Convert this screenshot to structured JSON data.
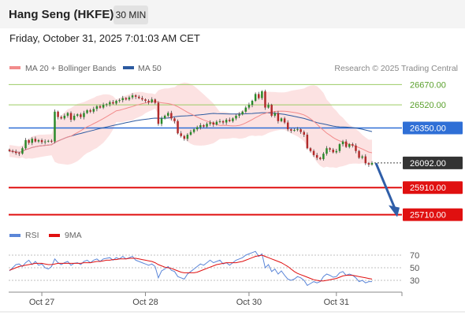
{
  "header": {
    "title": "Hang Seng (HKFE)",
    "interval": "30 MIN"
  },
  "timestamp": "Friday, October 31, 2025 7:01:03 AM CET",
  "chart_data": [
    {
      "type": "candlestick",
      "y_range": [
        25650,
        26730
      ],
      "legend": [
        {
          "label": "MA 20 + Bollinger Bands",
          "color": "#f28b8b"
        },
        {
          "label": "MA 50",
          "color": "#2c5aa0"
        }
      ],
      "credit": "Research © 2025 Trading Central",
      "x_ticks": [
        "Oct 27",
        "Oct 28",
        "Oct 30",
        "Oct 31"
      ],
      "levels": [
        {
          "label": "26670.00",
          "value": 26670,
          "kind": "resistance",
          "color": "#9ccc65"
        },
        {
          "label": "26520.00",
          "value": 26520,
          "kind": "resistance",
          "color": "#9ccc65"
        },
        {
          "label": "26350.00",
          "value": 26350,
          "kind": "pivot",
          "color": "#2f6fd6"
        },
        {
          "label": "26092.00",
          "value": 26092,
          "kind": "last-price",
          "color": "#333333"
        },
        {
          "label": "25910.00",
          "value": 25910,
          "kind": "support",
          "color": "#e01010"
        },
        {
          "label": "25710.00",
          "value": 25710,
          "kind": "support",
          "color": "#e01010"
        }
      ],
      "projection": {
        "from": 26090,
        "to": 25710,
        "direction": "down",
        "color": "#2f5ea8"
      },
      "closes": [
        26180,
        26175,
        26165,
        26160,
        26200,
        26260,
        26240,
        26270,
        26250,
        26260,
        26245,
        26250,
        26255,
        26250,
        26470,
        26430,
        26420,
        26440,
        26460,
        26410,
        26440,
        26450,
        26430,
        26460,
        26480,
        26470,
        26490,
        26510,
        26500,
        26520,
        26525,
        26540,
        26530,
        26550,
        26555,
        26570,
        26560,
        26575,
        26590,
        26580,
        26570,
        26560,
        26550,
        26540,
        26560,
        26535,
        26380,
        26420,
        26440,
        26460,
        26420,
        26400,
        26310,
        26290,
        26270,
        26300,
        26320,
        26340,
        26355,
        26370,
        26360,
        26380,
        26390,
        26375,
        26395,
        26400,
        26390,
        26410,
        26400,
        26420,
        26440,
        26450,
        26470,
        26500,
        26520,
        26550,
        26600,
        26570,
        26620,
        26500,
        26520,
        26440,
        26460,
        26400,
        26420,
        26390,
        26340,
        26330,
        26335,
        26340,
        26320,
        26300,
        26200,
        26180,
        26150,
        26130,
        26120,
        26160,
        26200,
        26190,
        26170,
        26180,
        26230,
        26250,
        26210,
        26230,
        26220,
        26180,
        26130,
        26140,
        26090,
        26080,
        26092
      ],
      "rsi": {
        "series": [
          {
            "name": "RSI",
            "color": "#5b86d8"
          },
          {
            "name": "9MA",
            "color": "#e01010"
          }
        ],
        "y_ticks": [
          70,
          50,
          30
        ],
        "values": [
          45,
          50,
          55,
          56,
          52,
          58,
          62,
          55,
          60,
          54,
          56,
          50,
          48,
          52,
          64,
          58,
          55,
          58,
          60,
          54,
          57,
          58,
          55,
          60,
          62,
          58,
          62,
          64,
          60,
          64,
          65,
          66,
          62,
          66,
          64,
          68,
          64,
          66,
          68,
          62,
          60,
          58,
          56,
          54,
          56,
          52,
          34,
          45,
          48,
          52,
          46,
          44,
          36,
          34,
          32,
          40,
          44,
          48,
          52,
          56,
          54,
          58,
          62,
          58,
          60,
          62,
          56,
          58,
          54,
          58,
          62,
          64,
          66,
          70,
          72,
          74,
          76,
          68,
          72,
          50,
          55,
          44,
          48,
          40,
          45,
          38,
          32,
          30,
          32,
          36,
          34,
          30,
          22,
          25,
          28,
          26,
          28,
          36,
          40,
          38,
          35,
          36,
          42,
          44,
          38,
          40,
          38,
          34,
          28,
          30,
          26,
          28,
          28
        ],
        "ma": [
          46,
          48,
          50,
          52,
          53,
          54,
          55,
          56,
          57,
          57,
          57,
          56,
          55,
          55,
          56,
          57,
          57,
          57,
          57,
          57,
          57,
          57,
          57,
          58,
          58,
          58,
          59,
          60,
          60,
          61,
          62,
          62,
          63,
          63,
          64,
          64,
          64,
          65,
          65,
          65,
          64,
          63,
          62,
          61,
          60,
          58,
          55,
          53,
          51,
          50,
          49,
          47,
          45,
          43,
          42,
          42,
          42,
          42,
          43,
          45,
          47,
          49,
          51,
          53,
          55,
          56,
          57,
          58,
          58,
          58,
          58,
          59,
          60,
          62,
          64,
          66,
          68,
          69,
          70,
          68,
          66,
          64,
          62,
          60,
          58,
          55,
          52,
          48,
          44,
          41,
          39,
          37,
          35,
          33,
          31,
          30,
          29,
          29,
          30,
          31,
          32,
          33,
          35,
          37,
          38,
          38,
          38,
          37,
          36,
          35,
          34,
          33,
          32
        ]
      }
    }
  ]
}
